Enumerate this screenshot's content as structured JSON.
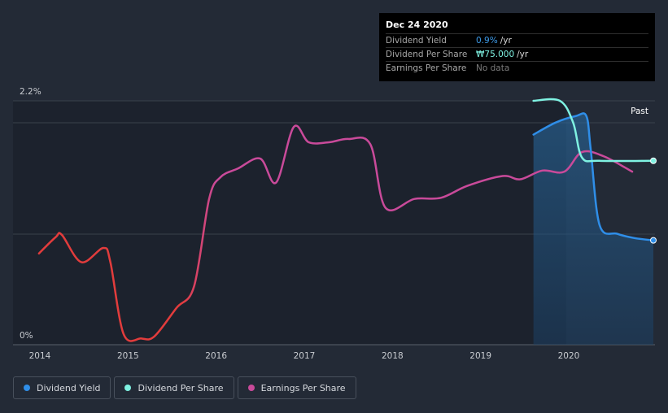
{
  "chart_data": {
    "type": "line",
    "ylim": [
      0,
      2.2
    ],
    "yaxis_labels": [
      "2.2%",
      "0%"
    ],
    "x_ticks": [
      "2014",
      "2015",
      "2016",
      "2017",
      "2018",
      "2019",
      "2020"
    ],
    "past_label": "Past",
    "series": [
      {
        "name": "Earnings Per Share",
        "colors": [
          "#e23c3c",
          "#c94a9a"
        ],
        "values": [
          [
            2013.99,
            0.8
          ],
          [
            2014.18,
            0.95
          ],
          [
            2014.25,
            0.97
          ],
          [
            2014.47,
            0.72
          ],
          [
            2014.72,
            0.85
          ],
          [
            2014.8,
            0.72
          ],
          [
            2014.95,
            0.06
          ],
          [
            2015.15,
            0.02
          ],
          [
            2015.3,
            0.04
          ],
          [
            2015.55,
            0.3
          ],
          [
            2015.75,
            0.5
          ],
          [
            2015.92,
            1.3
          ],
          [
            2016.05,
            1.5
          ],
          [
            2016.25,
            1.58
          ],
          [
            2016.5,
            1.67
          ],
          [
            2016.68,
            1.45
          ],
          [
            2016.88,
            1.96
          ],
          [
            2017.05,
            1.82
          ],
          [
            2017.28,
            1.82
          ],
          [
            2017.5,
            1.85
          ],
          [
            2017.75,
            1.8
          ],
          [
            2017.92,
            1.22
          ],
          [
            2018.25,
            1.3
          ],
          [
            2018.55,
            1.31
          ],
          [
            2018.85,
            1.42
          ],
          [
            2019.25,
            1.51
          ],
          [
            2019.45,
            1.48
          ],
          [
            2019.7,
            1.56
          ],
          [
            2019.95,
            1.55
          ],
          [
            2020.15,
            1.73
          ],
          [
            2020.4,
            1.69
          ],
          [
            2020.72,
            1.55
          ]
        ]
      },
      {
        "name": "Dividend Yield",
        "color": "#2f8ee8",
        "values": [
          [
            2019.6,
            1.89
          ],
          [
            2019.85,
            2.0
          ],
          [
            2020.08,
            2.06
          ],
          [
            2020.2,
            2.06
          ],
          [
            2020.25,
            1.75
          ],
          [
            2020.35,
            1.06
          ],
          [
            2020.55,
            0.98
          ],
          [
            2020.75,
            0.94
          ],
          [
            2020.96,
            0.92
          ]
        ]
      },
      {
        "name": "Dividend Per Share",
        "color": "#7ff2e2",
        "values": [
          [
            2019.6,
            2.2
          ],
          [
            2019.9,
            2.2
          ],
          [
            2020.05,
            2.0
          ],
          [
            2020.15,
            1.68
          ],
          [
            2020.35,
            1.65
          ],
          [
            2020.96,
            1.65
          ]
        ]
      }
    ]
  },
  "tooltip": {
    "date": "Dec 24 2020",
    "rows": [
      {
        "label": "Dividend Yield",
        "value": "0.9%",
        "unit": "/yr"
      },
      {
        "label": "Dividend Per Share",
        "value": "₩75.000",
        "unit": "/yr"
      },
      {
        "label": "Earnings Per Share",
        "value": "No data",
        "unit": ""
      }
    ]
  },
  "legend": [
    "Dividend Yield",
    "Dividend Per Share",
    "Earnings Per Share"
  ],
  "colors": {
    "background": "#232a36",
    "plot_past": "#1c222d",
    "area_fill": "#1f4a73",
    "grid": "#3a414c",
    "yield": "#2f8ee8",
    "dps": "#7ff2e2",
    "eps_red": "#e23c3c",
    "eps_magenta": "#c94a9a"
  }
}
